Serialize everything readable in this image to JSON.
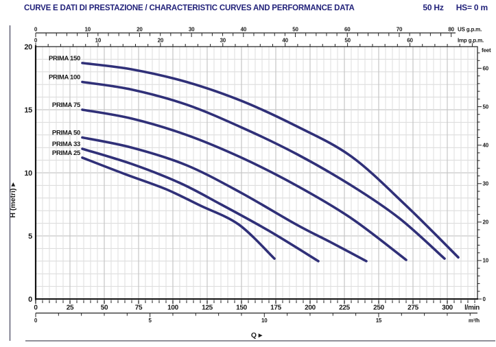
{
  "header": {
    "title": "CURVE E DATI DI PRESTAZIONE / CHARACTERISTIC CURVES AND PERFORMANCE DATA",
    "frequency": "50 Hz",
    "suction_head": "HS= 0 m"
  },
  "chart_data": {
    "type": "line",
    "title": "CURVE E DATI DI PRESTAZIONE / CHARACTERISTIC CURVES AND PERFORMANCE DATA",
    "x_axis": {
      "label": "Q",
      "primary_unit": "l/min",
      "primary_ticks": [
        0,
        25,
        50,
        75,
        100,
        125,
        150,
        175,
        200,
        225,
        250,
        275,
        300
      ],
      "secondary_unit": "m³/h",
      "secondary_ticks": [
        0,
        5,
        10,
        15
      ],
      "us_unit": "US g.p.m.",
      "us_ticks": [
        0,
        10,
        20,
        30,
        40,
        50,
        60,
        70,
        80
      ],
      "imp_unit": "Imp g.p.m.",
      "imp_ticks": [
        0,
        10,
        20,
        30,
        40,
        50,
        60
      ],
      "range_lmin": [
        0,
        322
      ]
    },
    "y_axis": {
      "label": "H (metri)",
      "ticks_m": [
        0,
        5,
        10,
        15,
        20
      ],
      "right_unit": "feet",
      "feet_ticks": [
        0,
        10,
        20,
        30,
        40,
        50,
        60
      ],
      "range_m": [
        0,
        20
      ]
    },
    "legend_position": "labels-at-curve-start",
    "grid": true,
    "curve_color": "#303078",
    "accent_color": "#22227a",
    "series": [
      {
        "name": "PRIMA 150",
        "points": [
          [
            34,
            18.7
          ],
          [
            70,
            18.2
          ],
          [
            110,
            17.2
          ],
          [
            150,
            15.7
          ],
          [
            190,
            13.7
          ],
          [
            230,
            11.3
          ],
          [
            270,
            7.4
          ],
          [
            308,
            3.3
          ]
        ]
      },
      {
        "name": "PRIMA 100",
        "points": [
          [
            34,
            17.2
          ],
          [
            70,
            16.6
          ],
          [
            110,
            15.4
          ],
          [
            150,
            13.6
          ],
          [
            190,
            11.5
          ],
          [
            230,
            9.0
          ],
          [
            265,
            6.4
          ],
          [
            298,
            3.2
          ]
        ]
      },
      {
        "name": "PRIMA 75",
        "points": [
          [
            34,
            15.0
          ],
          [
            70,
            14.3
          ],
          [
            110,
            13.0
          ],
          [
            150,
            11.2
          ],
          [
            190,
            9.0
          ],
          [
            230,
            6.4
          ],
          [
            270,
            3.1
          ]
        ]
      },
      {
        "name": "PRIMA 50",
        "points": [
          [
            34,
            12.8
          ],
          [
            70,
            12.0
          ],
          [
            110,
            10.6
          ],
          [
            150,
            8.4
          ],
          [
            190,
            5.9
          ],
          [
            215,
            4.5
          ],
          [
            241,
            3.0
          ]
        ]
      },
      {
        "name": "PRIMA 33",
        "points": [
          [
            34,
            11.9
          ],
          [
            70,
            10.7
          ],
          [
            105,
            9.2
          ],
          [
            135,
            7.5
          ],
          [
            170,
            5.4
          ],
          [
            206,
            3.0
          ]
        ]
      },
      {
        "name": "PRIMA 25",
        "points": [
          [
            34,
            11.2
          ],
          [
            65,
            9.9
          ],
          [
            95,
            8.7
          ],
          [
            120,
            7.4
          ],
          [
            148,
            5.9
          ],
          [
            174,
            3.2
          ]
        ]
      }
    ]
  }
}
